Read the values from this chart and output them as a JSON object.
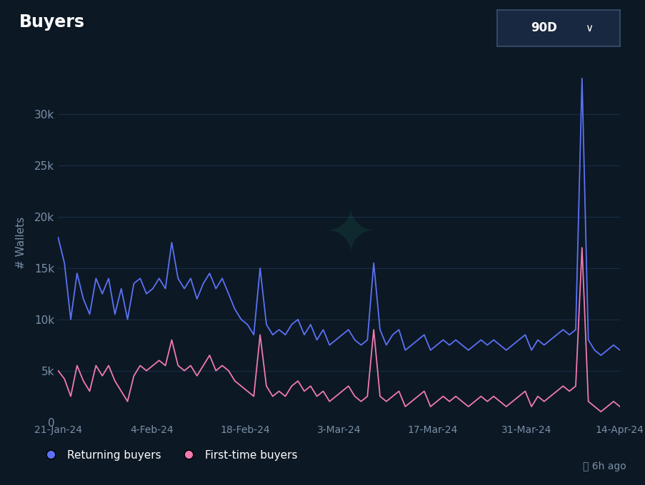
{
  "title": "Buyers",
  "ylabel": "# Wallets",
  "badge_text": "90D  ∨",
  "background_color": "#0c1824",
  "plot_bg_color": "#0c1824",
  "grid_color": "#1a2e45",
  "title_color": "#ffffff",
  "axis_color": "#7a8fa8",
  "returning_color": "#5b72f5",
  "firsttime_color": "#f07ab0",
  "ylim": [
    0,
    35000
  ],
  "yticks": [
    0,
    5000,
    10000,
    15000,
    20000,
    25000,
    30000
  ],
  "ytick_labels": [
    "0",
    "5k",
    "10k",
    "15k",
    "20k",
    "25k",
    "30k"
  ],
  "xtick_labels": [
    "21-Jan-24",
    "4-Feb-24",
    "18-Feb-24",
    "3-Mar-24",
    "17-Mar-24",
    "31-Mar-24",
    "14-Apr-24"
  ],
  "legend_returning": "Returning buyers",
  "legend_firsttime": "First-time buyers",
  "watermark_text": "6h ago",
  "returning_buyers": [
    18000,
    15500,
    10000,
    14500,
    12000,
    10500,
    14000,
    12500,
    14000,
    10500,
    13000,
    10000,
    13500,
    14000,
    12500,
    13000,
    14000,
    13000,
    17500,
    14000,
    13000,
    14000,
    12000,
    13500,
    14500,
    13000,
    14000,
    12500,
    11000,
    10000,
    9500,
    8500,
    15000,
    9500,
    8500,
    9000,
    8500,
    9500,
    10000,
    8500,
    9500,
    8000,
    9000,
    7500,
    8000,
    8500,
    9000,
    8000,
    7500,
    8000,
    15500,
    9000,
    7500,
    8500,
    9000,
    7000,
    7500,
    8000,
    8500,
    7000,
    7500,
    8000,
    7500,
    8000,
    7500,
    7000,
    7500,
    8000,
    7500,
    8000,
    7500,
    7000,
    7500,
    8000,
    8500,
    7000,
    8000,
    7500,
    8000,
    8500,
    9000,
    8500,
    9000,
    33500,
    8000,
    7000,
    6500,
    7000,
    7500,
    7000
  ],
  "firsttime_buyers": [
    5000,
    4200,
    2500,
    5500,
    4000,
    3000,
    5500,
    4500,
    5500,
    4000,
    3000,
    2000,
    4500,
    5500,
    5000,
    5500,
    6000,
    5500,
    8000,
    5500,
    5000,
    5500,
    4500,
    5500,
    6500,
    5000,
    5500,
    5000,
    4000,
    3500,
    3000,
    2500,
    8500,
    3500,
    2500,
    3000,
    2500,
    3500,
    4000,
    3000,
    3500,
    2500,
    3000,
    2000,
    2500,
    3000,
    3500,
    2500,
    2000,
    2500,
    9000,
    2500,
    2000,
    2500,
    3000,
    1500,
    2000,
    2500,
    3000,
    1500,
    2000,
    2500,
    2000,
    2500,
    2000,
    1500,
    2000,
    2500,
    2000,
    2500,
    2000,
    1500,
    2000,
    2500,
    3000,
    1500,
    2500,
    2000,
    2500,
    3000,
    3500,
    3000,
    3500,
    17000,
    2000,
    1500,
    1000,
    1500,
    2000,
    1500
  ]
}
